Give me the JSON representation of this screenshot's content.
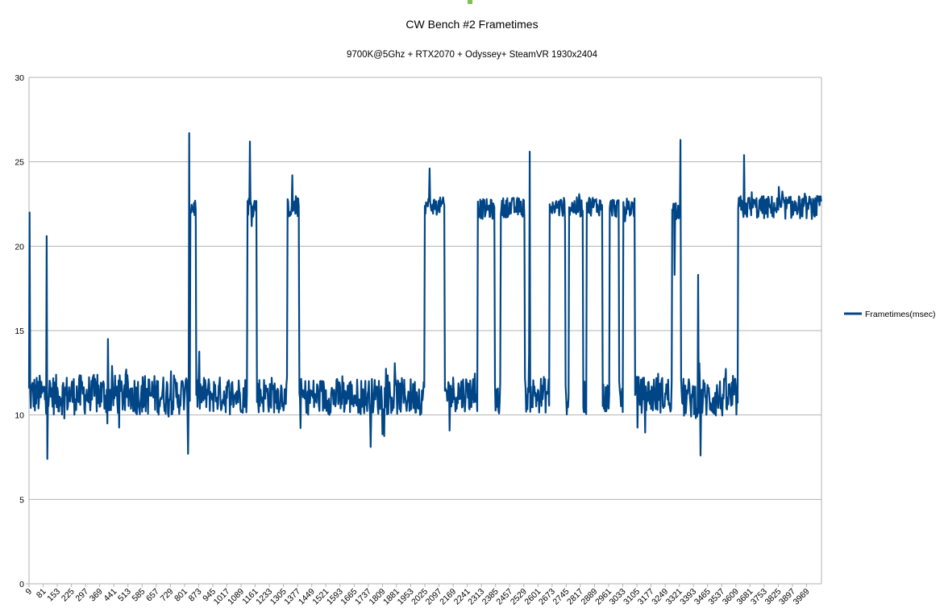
{
  "chart_data": {
    "type": "line",
    "title": "CW Bench #2 Frametimes",
    "subtitle": "9700K@5Ghz + RTX2070 + Odyssey+    SteamVR  1930x2404",
    "xlabel": "",
    "ylabel": "",
    "ylim": [
      0,
      30
    ],
    "y_ticks": [
      0,
      5,
      10,
      15,
      20,
      25,
      30
    ],
    "xlim": [
      9,
      4045
    ],
    "x_tick_labels": [
      9,
      81,
      153,
      225,
      297,
      369,
      441,
      513,
      585,
      657,
      729,
      801,
      873,
      945,
      1017,
      1089,
      1161,
      1233,
      1305,
      1377,
      1449,
      1521,
      1593,
      1665,
      1737,
      1809,
      1881,
      1953,
      2025,
      2097,
      2169,
      2241,
      2313,
      2385,
      2457,
      2529,
      2601,
      2673,
      2745,
      2817,
      2889,
      2961,
      3033,
      3105,
      3177,
      3249,
      3321,
      3393,
      3465,
      3537,
      3609,
      3681,
      3753,
      3825,
      3897,
      3969
    ],
    "grid": "horizontal",
    "legend_position": "right",
    "series": [
      {
        "name": "Frametimes(msec)",
        "color": "#004586",
        "segments": [
          {
            "from": 9,
            "to": 830,
            "mean": 11.2,
            "spread": 1.2
          },
          {
            "from": 830,
            "to": 860,
            "mean": 22.3,
            "spread": 0.6
          },
          {
            "from": 860,
            "to": 1120,
            "mean": 11.2,
            "spread": 1.1
          },
          {
            "from": 1120,
            "to": 1170,
            "mean": 22.4,
            "spread": 0.6
          },
          {
            "from": 1170,
            "to": 1325,
            "mean": 11.2,
            "spread": 1.1
          },
          {
            "from": 1325,
            "to": 1385,
            "mean": 22.3,
            "spread": 0.6
          },
          {
            "from": 1385,
            "to": 2025,
            "mean": 11.1,
            "spread": 1.1
          },
          {
            "from": 2025,
            "to": 2125,
            "mean": 22.4,
            "spread": 0.5
          },
          {
            "from": 2125,
            "to": 2295,
            "mean": 11.3,
            "spread": 1.1
          },
          {
            "from": 2295,
            "to": 2380,
            "mean": 22.2,
            "spread": 0.6
          },
          {
            "from": 2380,
            "to": 2410,
            "mean": 11.0,
            "spread": 1.0
          },
          {
            "from": 2410,
            "to": 2535,
            "mean": 22.3,
            "spread": 0.6
          },
          {
            "from": 2535,
            "to": 2660,
            "mean": 11.2,
            "spread": 1.1
          },
          {
            "from": 2660,
            "to": 2740,
            "mean": 22.3,
            "spread": 0.6
          },
          {
            "from": 2740,
            "to": 2760,
            "mean": 11.0,
            "spread": 1.0
          },
          {
            "from": 2760,
            "to": 2830,
            "mean": 22.3,
            "spread": 0.6
          },
          {
            "from": 2830,
            "to": 2850,
            "mean": 11.0,
            "spread": 1.0
          },
          {
            "from": 2850,
            "to": 2930,
            "mean": 22.4,
            "spread": 0.6
          },
          {
            "from": 2930,
            "to": 2965,
            "mean": 11.0,
            "spread": 1.0
          },
          {
            "from": 2965,
            "to": 3015,
            "mean": 22.3,
            "spread": 0.6
          },
          {
            "from": 3015,
            "to": 3035,
            "mean": 11.0,
            "spread": 1.0
          },
          {
            "from": 3035,
            "to": 3095,
            "mean": 22.3,
            "spread": 0.6
          },
          {
            "from": 3095,
            "to": 3285,
            "mean": 11.2,
            "spread": 1.1
          },
          {
            "from": 3285,
            "to": 3330,
            "mean": 22.2,
            "spread": 0.6
          },
          {
            "from": 3330,
            "to": 3620,
            "mean": 11.0,
            "spread": 1.2
          },
          {
            "from": 3620,
            "to": 4045,
            "mean": 22.3,
            "spread": 0.7
          }
        ],
        "spikes": [
          {
            "x": 12,
            "y": 22.0
          },
          {
            "x": 100,
            "y": 20.6
          },
          {
            "x": 103,
            "y": 7.4
          },
          {
            "x": 410,
            "y": 14.5
          },
          {
            "x": 824,
            "y": 26.7
          },
          {
            "x": 820,
            "y": 7.7
          },
          {
            "x": 1135,
            "y": 26.2
          },
          {
            "x": 1350,
            "y": 24.2
          },
          {
            "x": 2050,
            "y": 24.6
          },
          {
            "x": 2560,
            "y": 25.6
          },
          {
            "x": 3297,
            "y": 18.3
          },
          {
            "x": 3328,
            "y": 26.3
          },
          {
            "x": 3418,
            "y": 18.3
          },
          {
            "x": 3428,
            "y": 7.6
          },
          {
            "x": 3650,
            "y": 25.4
          },
          {
            "x": 1750,
            "y": 8.1
          }
        ]
      }
    ]
  }
}
